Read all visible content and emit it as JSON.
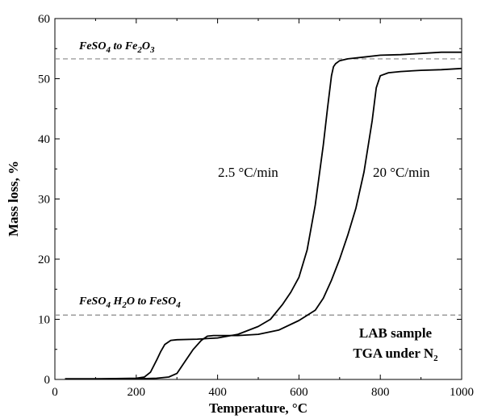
{
  "chart_data": {
    "type": "line",
    "xlabel": "Temperature, °C",
    "ylabel": "Mass loss, %",
    "xlim": [
      0,
      1000
    ],
    "ylim": [
      0,
      60
    ],
    "xticks": [
      "0",
      "200",
      "400",
      "600",
      "800",
      "1000"
    ],
    "yticks": [
      "0",
      "10",
      "20",
      "30",
      "40",
      "50",
      "60"
    ],
    "grid": false,
    "series": [
      {
        "name": "2.5 °C/min",
        "color": "#000000",
        "x": [
          25,
          100,
          200,
          220,
          235,
          250,
          260,
          270,
          285,
          300,
          350,
          400,
          450,
          500,
          530,
          560,
          580,
          600,
          620,
          640,
          660,
          670,
          680,
          685,
          690,
          700,
          720,
          760,
          800,
          850,
          900,
          950,
          1000
        ],
        "y": [
          0.1,
          0.1,
          0.2,
          0.4,
          1.2,
          3.2,
          4.6,
          5.8,
          6.5,
          6.6,
          6.7,
          6.9,
          7.5,
          8.8,
          10.0,
          12.5,
          14.5,
          17.0,
          21.5,
          29.0,
          39.0,
          45.0,
          50.5,
          52.0,
          52.5,
          53.0,
          53.3,
          53.6,
          53.9,
          54.0,
          54.2,
          54.4,
          54.4
        ]
      },
      {
        "name": "20 °C/min",
        "color": "#000000",
        "x": [
          25,
          100,
          200,
          250,
          280,
          300,
          320,
          340,
          360,
          375,
          390,
          420,
          450,
          500,
          550,
          600,
          640,
          660,
          680,
          700,
          720,
          740,
          760,
          780,
          790,
          800,
          820,
          850,
          900,
          950,
          1000
        ],
        "y": [
          0.1,
          0.1,
          0.1,
          0.2,
          0.4,
          1.0,
          3.0,
          5.0,
          6.5,
          7.2,
          7.3,
          7.3,
          7.3,
          7.5,
          8.2,
          9.8,
          11.5,
          13.5,
          16.5,
          20.0,
          24.0,
          28.5,
          34.5,
          43.0,
          48.5,
          50.5,
          51.0,
          51.2,
          51.4,
          51.5,
          51.7
        ]
      }
    ],
    "reference_lines": [
      {
        "y": 53.3,
        "label_main": "FeSO",
        "label_sub1": "4",
        "label_mid": " to Fe",
        "label_sub2": "2",
        "label_mid2": "O",
        "label_sub3": "3"
      },
      {
        "y": 10.7,
        "label_main": "FeSO",
        "label_sub1": "4",
        "label_mid": " H",
        "label_sub2": "2",
        "label_mid2": "O to FeSO",
        "label_sub3": "4"
      }
    ],
    "annotations": {
      "sample_line1": "LAB sample",
      "sample_line2_main": "TGA under N",
      "sample_line2_sub": "2"
    }
  },
  "style": {
    "reference_line_color": "#888888",
    "axis_color": "#000000"
  }
}
